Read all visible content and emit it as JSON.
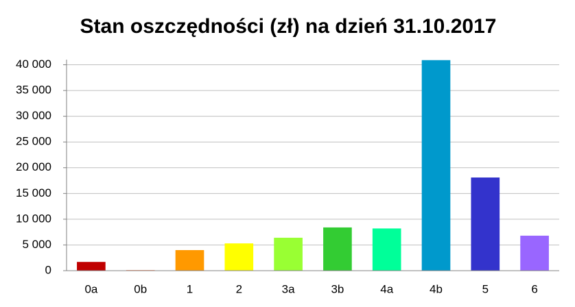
{
  "chart_data": {
    "type": "bar",
    "title": "Stan oszczędności (zł) na dzień 31.10.2017",
    "categories": [
      "0a",
      "0b",
      "1",
      "2",
      "3a",
      "3b",
      "4a",
      "4b",
      "5",
      "6"
    ],
    "values": [
      1700,
      100,
      4000,
      5300,
      6400,
      8400,
      8200,
      40900,
      18100,
      6800
    ],
    "colors": [
      "#c00000",
      "#ff4000",
      "#ff9900",
      "#ffff00",
      "#99ff33",
      "#33cc33",
      "#00ff99",
      "#0099cc",
      "#3333cc",
      "#9966ff"
    ],
    "ylim": [
      0,
      41000
    ],
    "yticks": [
      {
        "value": 0,
        "label": "0"
      },
      {
        "value": 5000,
        "label": "5 000"
      },
      {
        "value": 10000,
        "label": "10 000"
      },
      {
        "value": 15000,
        "label": "15 000"
      },
      {
        "value": 20000,
        "label": "20 000"
      },
      {
        "value": 25000,
        "label": "25 000"
      },
      {
        "value": 30000,
        "label": "30 000"
      },
      {
        "value": 35000,
        "label": "35 000"
      },
      {
        "value": 40000,
        "label": "40 000"
      }
    ],
    "grid": true
  }
}
